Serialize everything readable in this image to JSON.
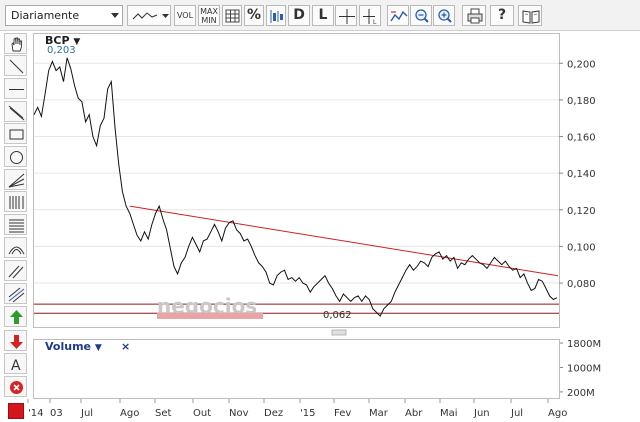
{
  "toolbar": {
    "period_value": "Diariamente",
    "vol_label": "VOL",
    "maxmin_line1": "MAX",
    "maxmin_line2": "MIN",
    "percent_label": "%",
    "d_label": "D",
    "l_label": "L",
    "help_label": "?"
  },
  "chart": {
    "ticker": "BCP",
    "ticker_arrow": "▼",
    "last_value": "0,203",
    "min_label": "0,062",
    "watermark": "negocios",
    "y_ticks": [
      "0,200",
      "0,180",
      "0,160",
      "0,140",
      "0,120",
      "0,100",
      "0,080"
    ],
    "y_tick_values": [
      0.2,
      0.18,
      0.16,
      0.14,
      0.12,
      0.1,
      0.08
    ],
    "y_range": [
      0.056,
      0.216
    ],
    "price_series": [
      0.172,
      0.176,
      0.171,
      0.183,
      0.196,
      0.201,
      0.196,
      0.198,
      0.19,
      0.203,
      0.197,
      0.188,
      0.181,
      0.179,
      0.168,
      0.172,
      0.16,
      0.155,
      0.166,
      0.17,
      0.186,
      0.19,
      0.165,
      0.145,
      0.13,
      0.122,
      0.118,
      0.112,
      0.106,
      0.103,
      0.108,
      0.104,
      0.112,
      0.118,
      0.122,
      0.115,
      0.109,
      0.099,
      0.089,
      0.085,
      0.091,
      0.094,
      0.1,
      0.105,
      0.101,
      0.097,
      0.103,
      0.104,
      0.108,
      0.112,
      0.108,
      0.103,
      0.11,
      0.113,
      0.114,
      0.109,
      0.107,
      0.103,
      0.104,
      0.1,
      0.095,
      0.091,
      0.089,
      0.086,
      0.08,
      0.079,
      0.084,
      0.086,
      0.087,
      0.082,
      0.083,
      0.081,
      0.083,
      0.08,
      0.079,
      0.075,
      0.078,
      0.08,
      0.082,
      0.084,
      0.08,
      0.077,
      0.073,
      0.07,
      0.074,
      0.072,
      0.07,
      0.072,
      0.073,
      0.07,
      0.073,
      0.071,
      0.066,
      0.064,
      0.062,
      0.066,
      0.068,
      0.07,
      0.075,
      0.079,
      0.083,
      0.087,
      0.09,
      0.087,
      0.089,
      0.092,
      0.091,
      0.089,
      0.094,
      0.096,
      0.097,
      0.093,
      0.095,
      0.092,
      0.094,
      0.088,
      0.091,
      0.09,
      0.093,
      0.095,
      0.093,
      0.091,
      0.09,
      0.088,
      0.091,
      0.094,
      0.092,
      0.09,
      0.092,
      0.089,
      0.087,
      0.088,
      0.083,
      0.085,
      0.08,
      0.076,
      0.077,
      0.082,
      0.081,
      0.077,
      0.073,
      0.071,
      0.072
    ],
    "trendline": {
      "start_index": 26,
      "start_value": 0.122,
      "end_value": 0.084
    },
    "support_levels": [
      0.0685,
      0.0635
    ],
    "volume_label": "Volume",
    "volume_arrow": "▼",
    "volume_close": "×",
    "volume_ticks": [
      "1800M",
      "1000M",
      "200M"
    ],
    "volume_tick_values": [
      1800,
      1000,
      200
    ],
    "volume_range": [
      0,
      1900
    ],
    "x_labels": [
      "'14",
      "03",
      "Jul",
      "Ago",
      "Set",
      "Out",
      "Nov",
      "Dez",
      "'15",
      "Fev",
      "Mar",
      "Abr",
      "Mai",
      "Jun",
      "Jul",
      "Ago"
    ]
  },
  "colors": {
    "price_line": "#111111",
    "trendline": "#cc2222",
    "support": "#8b1a1a",
    "volume_fill": "#3b3bc8",
    "volume_fill_light": "#9090e0"
  }
}
